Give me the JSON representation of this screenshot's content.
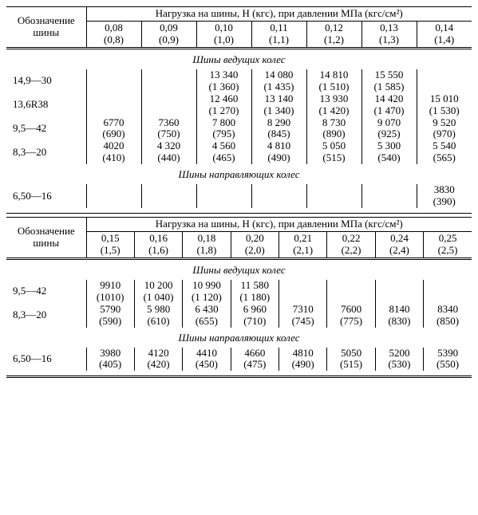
{
  "top": {
    "row_header": "Обозначение шины",
    "load_header": "Нагрузка на шины, Н (кгс), при давлении МПа (кгс/см²)",
    "pressures": [
      {
        "mpa": "0,08",
        "kgf": "(0,8)"
      },
      {
        "mpa": "0,09",
        "kgf": "(0,9)"
      },
      {
        "mpa": "0,10",
        "kgf": "(1,0)"
      },
      {
        "mpa": "0,11",
        "kgf": "(1,1)"
      },
      {
        "mpa": "0,12",
        "kgf": "(1,2)"
      },
      {
        "mpa": "0,13",
        "kgf": "(1,3)"
      },
      {
        "mpa": "0,14",
        "kgf": "(1,4)"
      }
    ],
    "section1": "Шины ведущих колес",
    "rows1": [
      {
        "label": "14,9—30",
        "cells": [
          {
            "n": "",
            "k": ""
          },
          {
            "n": "",
            "k": ""
          },
          {
            "n": "13 340",
            "k": "(1 360)"
          },
          {
            "n": "14 080",
            "k": "(1 435)"
          },
          {
            "n": "14 810",
            "k": "(1 510)"
          },
          {
            "n": "15 550",
            "k": "(1 585)"
          },
          {
            "n": "",
            "k": ""
          }
        ]
      },
      {
        "label": "13,6R38",
        "cells": [
          {
            "n": "",
            "k": ""
          },
          {
            "n": "",
            "k": ""
          },
          {
            "n": "12 460",
            "k": "(1 270)"
          },
          {
            "n": "13 140",
            "k": "(1 340)"
          },
          {
            "n": "13 930",
            "k": "(1 420)"
          },
          {
            "n": "14 420",
            "k": "(1 470)"
          },
          {
            "n": "15 010",
            "k": "(1 530)"
          }
        ]
      },
      {
        "label": "9,5—42",
        "cells": [
          {
            "n": "6770",
            "k": "(690)"
          },
          {
            "n": "7360",
            "k": "(750)"
          },
          {
            "n": "7 800",
            "k": "(795)"
          },
          {
            "n": "8 290",
            "k": "(845)"
          },
          {
            "n": "8 730",
            "k": "(890)"
          },
          {
            "n": "9 070",
            "k": "(925)"
          },
          {
            "n": "9 520",
            "k": "(970)"
          }
        ]
      },
      {
        "label": "8,3—20",
        "cells": [
          {
            "n": "4020",
            "k": "(410)"
          },
          {
            "n": "4 320",
            "k": "(440)"
          },
          {
            "n": "4 560",
            "k": "(465)"
          },
          {
            "n": "4 810",
            "k": "(490)"
          },
          {
            "n": "5 050",
            "k": "(515)"
          },
          {
            "n": "5 300",
            "k": "(540)"
          },
          {
            "n": "5 540",
            "k": "(565)"
          }
        ]
      }
    ],
    "section2": "Шины направляющих колес",
    "rows2": [
      {
        "label": "6,50—16",
        "cells": [
          {
            "n": "",
            "k": ""
          },
          {
            "n": "",
            "k": ""
          },
          {
            "n": "",
            "k": ""
          },
          {
            "n": "",
            "k": ""
          },
          {
            "n": "",
            "k": ""
          },
          {
            "n": "",
            "k": ""
          },
          {
            "n": "3830",
            "k": "(390)"
          }
        ]
      }
    ]
  },
  "bottom": {
    "row_header": "Обозначение шины",
    "load_header": "Нагрузка на шины, Н (кгс), при давлении МПа (кгс/см²)",
    "pressures": [
      {
        "mpa": "0,15",
        "kgf": "(1,5)"
      },
      {
        "mpa": "0,16",
        "kgf": "(1,6)"
      },
      {
        "mpa": "0,18",
        "kgf": "(1,8)"
      },
      {
        "mpa": "0,20",
        "kgf": "(2,0)"
      },
      {
        "mpa": "0,21",
        "kgf": "(2,1)"
      },
      {
        "mpa": "0,22",
        "kgf": "(2,2)"
      },
      {
        "mpa": "0,24",
        "kgf": "(2,4)"
      },
      {
        "mpa": "0,25",
        "kgf": "(2,5)"
      }
    ],
    "section1": "Шины ведущих колес",
    "rows1": [
      {
        "label": "9,5—42",
        "cells": [
          {
            "n": "9910",
            "k": "(1010)"
          },
          {
            "n": "10 200",
            "k": "(1 040)"
          },
          {
            "n": "10 990",
            "k": "(1 120)"
          },
          {
            "n": "11 580",
            "k": "(1 180)"
          },
          {
            "n": "",
            "k": ""
          },
          {
            "n": "",
            "k": ""
          },
          {
            "n": "",
            "k": ""
          },
          {
            "n": "",
            "k": ""
          }
        ]
      },
      {
        "label": "8,3—20",
        "cells": [
          {
            "n": "5790",
            "k": "(590)"
          },
          {
            "n": "5 980",
            "k": "(610)"
          },
          {
            "n": "6 430",
            "k": "(655)"
          },
          {
            "n": "6 960",
            "k": "(710)"
          },
          {
            "n": "7310",
            "k": "(745)"
          },
          {
            "n": "7600",
            "k": "(775)"
          },
          {
            "n": "8140",
            "k": "(830)"
          },
          {
            "n": "8340",
            "k": "(850)"
          }
        ]
      }
    ],
    "section2": "Шины направляющих колес",
    "rows2": [
      {
        "label": "6,50—16",
        "cells": [
          {
            "n": "3980",
            "k": "(405)"
          },
          {
            "n": "4120",
            "k": "(420)"
          },
          {
            "n": "4410",
            "k": "(450)"
          },
          {
            "n": "4660",
            "k": "(475)"
          },
          {
            "n": "4810",
            "k": "(490)"
          },
          {
            "n": "5050",
            "k": "(515)"
          },
          {
            "n": "5200",
            "k": "(530)"
          },
          {
            "n": "5390",
            "k": "(550)"
          }
        ]
      }
    ]
  }
}
